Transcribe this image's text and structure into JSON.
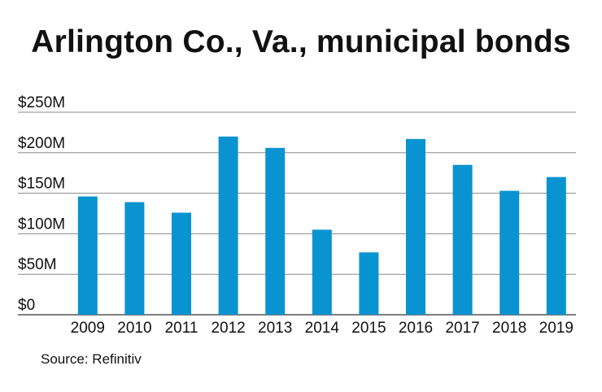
{
  "title": "Arlington Co., Va., municipal bonds",
  "source": "Source: Refinitiv",
  "colors": {
    "bar": "#0a93d1",
    "grid": "#8a8a8a",
    "text": "#111111"
  },
  "chart_data": {
    "type": "bar",
    "title": "Arlington Co., Va., municipal bonds",
    "categories": [
      "2009",
      "2010",
      "2011",
      "2012",
      "2013",
      "2014",
      "2015",
      "2016",
      "2017",
      "2018",
      "2019"
    ],
    "values": [
      146,
      139,
      126,
      220,
      206,
      105,
      77,
      217,
      185,
      153,
      170
    ],
    "ylim": [
      0,
      250
    ],
    "yticks": [
      0,
      50,
      100,
      150,
      200,
      250
    ],
    "ytick_labels": [
      "$0",
      "$50M",
      "$100M",
      "$150M",
      "$200M",
      "$250M"
    ],
    "grid": true,
    "xlabel": "",
    "ylabel": ""
  }
}
